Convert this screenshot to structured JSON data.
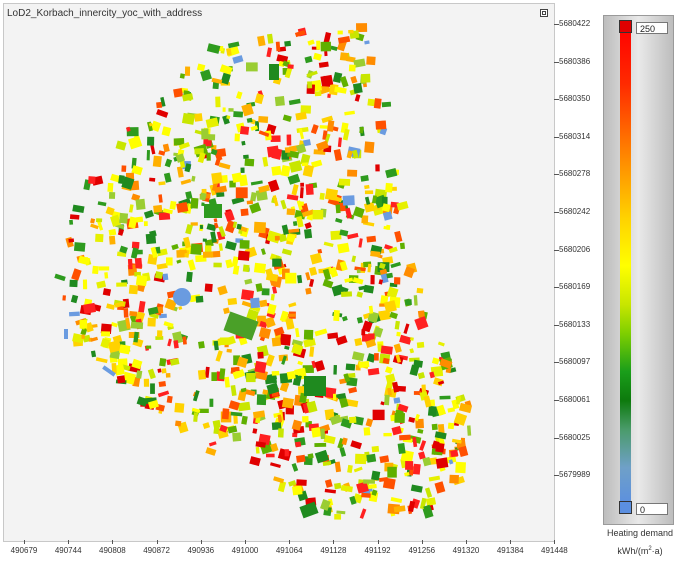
{
  "map": {
    "title": "LoD2_Korbach_innercity_yoc_with_address",
    "maximize_icon": "maximize-icon"
  },
  "axes": {
    "y_ticks": [
      "5680422",
      "5680386",
      "5680350",
      "5680314",
      "5680278",
      "5680242",
      "5680206",
      "5680169",
      "5680133",
      "5680097",
      "5680061",
      "5680025",
      "5679989"
    ],
    "x_ticks": [
      "490679",
      "490744",
      "490808",
      "490872",
      "490936",
      "491000",
      "491064",
      "491128",
      "491192",
      "491256",
      "491320",
      "491384",
      "491448"
    ]
  },
  "legend": {
    "max_value": "250",
    "min_value": "0",
    "title": "Heating demand",
    "unit_base": "kWh/(m",
    "unit_sup": "2",
    "unit_tail": "·a)",
    "max_color": "#e00000",
    "min_color": "#5b8fe0"
  },
  "palette": [
    "#ffff00",
    "#ffff00",
    "#e6f000",
    "#c8e600",
    "#ffd200",
    "#ffb000",
    "#ff8c00",
    "#ff5000",
    "#ff2020",
    "#e00000",
    "#9acd32",
    "#5fb000",
    "#2e9b1e",
    "#1f8a1f"
  ]
}
